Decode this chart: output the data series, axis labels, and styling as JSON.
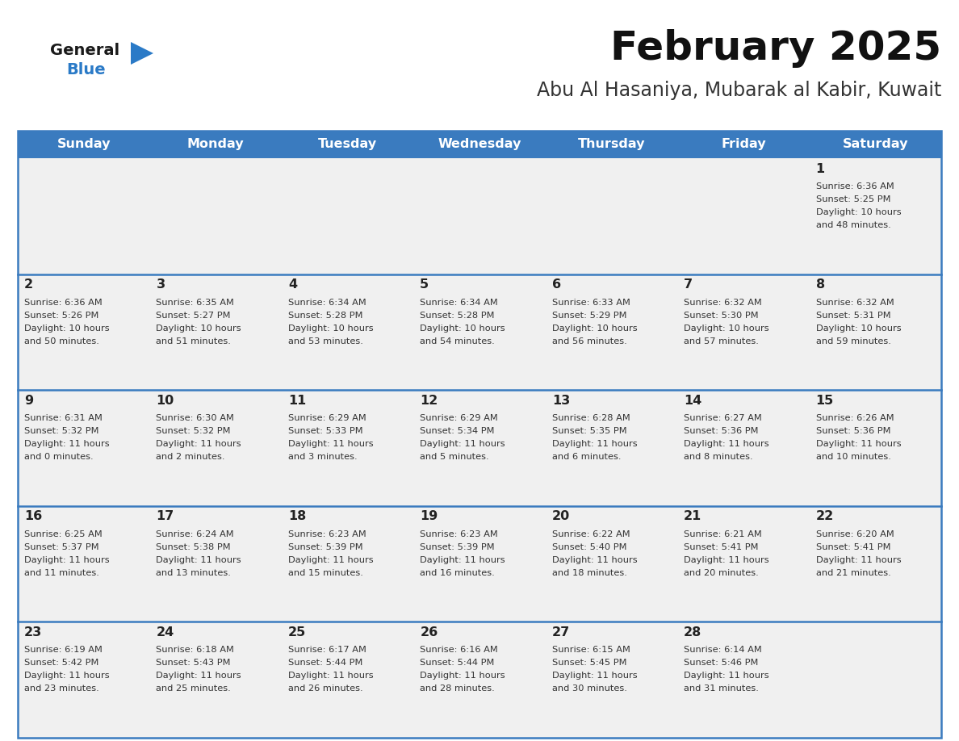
{
  "title": "February 2025",
  "subtitle": "Abu Al Hasaniya, Mubarak al Kabir, Kuwait",
  "days_of_week": [
    "Sunday",
    "Monday",
    "Tuesday",
    "Wednesday",
    "Thursday",
    "Friday",
    "Saturday"
  ],
  "header_bg": "#3a7bbf",
  "header_text": "#ffffff",
  "cell_bg_light": "#f0f0f0",
  "day_number_color": "#222222",
  "info_text_color": "#333333",
  "border_color": "#3a7bbf",
  "logo_general_color": "#1a1a1a",
  "logo_blue_color": "#2a7ac7",
  "title_color": "#111111",
  "subtitle_color": "#333333",
  "calendar_data": [
    {
      "day": 1,
      "row": 0,
      "col": 6,
      "sunrise": "6:36 AM",
      "sunset": "5:25 PM",
      "daylight_hours": 10,
      "daylight_minutes": 48
    },
    {
      "day": 2,
      "row": 1,
      "col": 0,
      "sunrise": "6:36 AM",
      "sunset": "5:26 PM",
      "daylight_hours": 10,
      "daylight_minutes": 50
    },
    {
      "day": 3,
      "row": 1,
      "col": 1,
      "sunrise": "6:35 AM",
      "sunset": "5:27 PM",
      "daylight_hours": 10,
      "daylight_minutes": 51
    },
    {
      "day": 4,
      "row": 1,
      "col": 2,
      "sunrise": "6:34 AM",
      "sunset": "5:28 PM",
      "daylight_hours": 10,
      "daylight_minutes": 53
    },
    {
      "day": 5,
      "row": 1,
      "col": 3,
      "sunrise": "6:34 AM",
      "sunset": "5:28 PM",
      "daylight_hours": 10,
      "daylight_minutes": 54
    },
    {
      "day": 6,
      "row": 1,
      "col": 4,
      "sunrise": "6:33 AM",
      "sunset": "5:29 PM",
      "daylight_hours": 10,
      "daylight_minutes": 56
    },
    {
      "day": 7,
      "row": 1,
      "col": 5,
      "sunrise": "6:32 AM",
      "sunset": "5:30 PM",
      "daylight_hours": 10,
      "daylight_minutes": 57
    },
    {
      "day": 8,
      "row": 1,
      "col": 6,
      "sunrise": "6:32 AM",
      "sunset": "5:31 PM",
      "daylight_hours": 10,
      "daylight_minutes": 59
    },
    {
      "day": 9,
      "row": 2,
      "col": 0,
      "sunrise": "6:31 AM",
      "sunset": "5:32 PM",
      "daylight_hours": 11,
      "daylight_minutes": 0
    },
    {
      "day": 10,
      "row": 2,
      "col": 1,
      "sunrise": "6:30 AM",
      "sunset": "5:32 PM",
      "daylight_hours": 11,
      "daylight_minutes": 2
    },
    {
      "day": 11,
      "row": 2,
      "col": 2,
      "sunrise": "6:29 AM",
      "sunset": "5:33 PM",
      "daylight_hours": 11,
      "daylight_minutes": 3
    },
    {
      "day": 12,
      "row": 2,
      "col": 3,
      "sunrise": "6:29 AM",
      "sunset": "5:34 PM",
      "daylight_hours": 11,
      "daylight_minutes": 5
    },
    {
      "day": 13,
      "row": 2,
      "col": 4,
      "sunrise": "6:28 AM",
      "sunset": "5:35 PM",
      "daylight_hours": 11,
      "daylight_minutes": 6
    },
    {
      "day": 14,
      "row": 2,
      "col": 5,
      "sunrise": "6:27 AM",
      "sunset": "5:36 PM",
      "daylight_hours": 11,
      "daylight_minutes": 8
    },
    {
      "day": 15,
      "row": 2,
      "col": 6,
      "sunrise": "6:26 AM",
      "sunset": "5:36 PM",
      "daylight_hours": 11,
      "daylight_minutes": 10
    },
    {
      "day": 16,
      "row": 3,
      "col": 0,
      "sunrise": "6:25 AM",
      "sunset": "5:37 PM",
      "daylight_hours": 11,
      "daylight_minutes": 11
    },
    {
      "day": 17,
      "row": 3,
      "col": 1,
      "sunrise": "6:24 AM",
      "sunset": "5:38 PM",
      "daylight_hours": 11,
      "daylight_minutes": 13
    },
    {
      "day": 18,
      "row": 3,
      "col": 2,
      "sunrise": "6:23 AM",
      "sunset": "5:39 PM",
      "daylight_hours": 11,
      "daylight_minutes": 15
    },
    {
      "day": 19,
      "row": 3,
      "col": 3,
      "sunrise": "6:23 AM",
      "sunset": "5:39 PM",
      "daylight_hours": 11,
      "daylight_minutes": 16
    },
    {
      "day": 20,
      "row": 3,
      "col": 4,
      "sunrise": "6:22 AM",
      "sunset": "5:40 PM",
      "daylight_hours": 11,
      "daylight_minutes": 18
    },
    {
      "day": 21,
      "row": 3,
      "col": 5,
      "sunrise": "6:21 AM",
      "sunset": "5:41 PM",
      "daylight_hours": 11,
      "daylight_minutes": 20
    },
    {
      "day": 22,
      "row": 3,
      "col": 6,
      "sunrise": "6:20 AM",
      "sunset": "5:41 PM",
      "daylight_hours": 11,
      "daylight_minutes": 21
    },
    {
      "day": 23,
      "row": 4,
      "col": 0,
      "sunrise": "6:19 AM",
      "sunset": "5:42 PM",
      "daylight_hours": 11,
      "daylight_minutes": 23
    },
    {
      "day": 24,
      "row": 4,
      "col": 1,
      "sunrise": "6:18 AM",
      "sunset": "5:43 PM",
      "daylight_hours": 11,
      "daylight_minutes": 25
    },
    {
      "day": 25,
      "row": 4,
      "col": 2,
      "sunrise": "6:17 AM",
      "sunset": "5:44 PM",
      "daylight_hours": 11,
      "daylight_minutes": 26
    },
    {
      "day": 26,
      "row": 4,
      "col": 3,
      "sunrise": "6:16 AM",
      "sunset": "5:44 PM",
      "daylight_hours": 11,
      "daylight_minutes": 28
    },
    {
      "day": 27,
      "row": 4,
      "col": 4,
      "sunrise": "6:15 AM",
      "sunset": "5:45 PM",
      "daylight_hours": 11,
      "daylight_minutes": 30
    },
    {
      "day": 28,
      "row": 4,
      "col": 5,
      "sunrise": "6:14 AM",
      "sunset": "5:46 PM",
      "daylight_hours": 11,
      "daylight_minutes": 31
    }
  ]
}
